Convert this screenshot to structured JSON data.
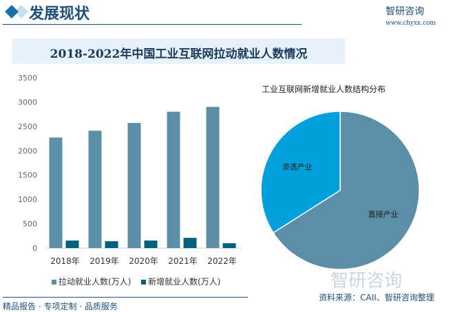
{
  "header": {
    "title": "发展现状",
    "logo": "智研咨询",
    "url": "www.chyxx.com"
  },
  "footer": {
    "left": "精品报告 · 专项定制 · 品质服务",
    "source": "资料来源：CAII、智研咨询整理",
    "watermark_logo": "智研咨询"
  },
  "chart_data": [
    {
      "type": "bar",
      "title": "2018-2022年中国工业互联网拉动就业人数情况",
      "categories": [
        "2018年",
        "2019年",
        "2020年",
        "2021年",
        "2022年"
      ],
      "series": [
        {
          "name": "拉动就业人数(万人)",
          "values": [
            2270,
            2410,
            2570,
            2800,
            2900
          ],
          "color": "#5b8fa8"
        },
        {
          "name": "新增就业人数(万人)",
          "values": [
            155,
            140,
            155,
            210,
            100
          ],
          "color": "#05607f"
        }
      ],
      "ylim": [
        0,
        3500
      ],
      "yticks": [
        "0",
        "500",
        "1000",
        "1500",
        "2000",
        "2500",
        "3000",
        "3500"
      ],
      "grid": false,
      "legend": "bottom"
    },
    {
      "type": "pie",
      "title": "工业互联网新增就业人数结构分布",
      "slices": [
        {
          "label": "直接产业",
          "value": 66,
          "color": "#5b8fa8"
        },
        {
          "label": "渗透产业",
          "value": 34,
          "color": "#00a0dc"
        }
      ]
    }
  ]
}
